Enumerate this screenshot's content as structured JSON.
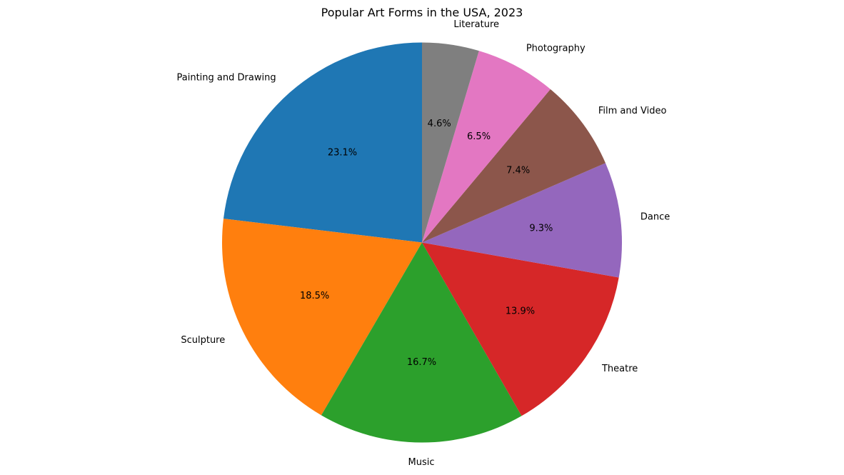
{
  "chart_data": {
    "type": "pie",
    "title": "Popular Art Forms in the USA, 2023",
    "categories": [
      "Painting and Drawing",
      "Sculpture",
      "Music",
      "Theatre",
      "Dance",
      "Film and Video",
      "Photography",
      "Literature"
    ],
    "values": [
      23.1,
      18.5,
      16.7,
      13.9,
      9.3,
      7.4,
      6.5,
      4.6
    ],
    "percent_labels": [
      "23.1%",
      "18.5%",
      "16.7%",
      "13.9%",
      "9.3%",
      "7.4%",
      "6.5%",
      "4.6%"
    ],
    "colors": [
      "#1f77b4",
      "#ff7f0e",
      "#2ca02c",
      "#d62728",
      "#9467bd",
      "#8c564b",
      "#e377c2",
      "#7f7f7f"
    ],
    "start_angle_deg": 90,
    "direction": "counterclockwise",
    "legend": "none"
  }
}
